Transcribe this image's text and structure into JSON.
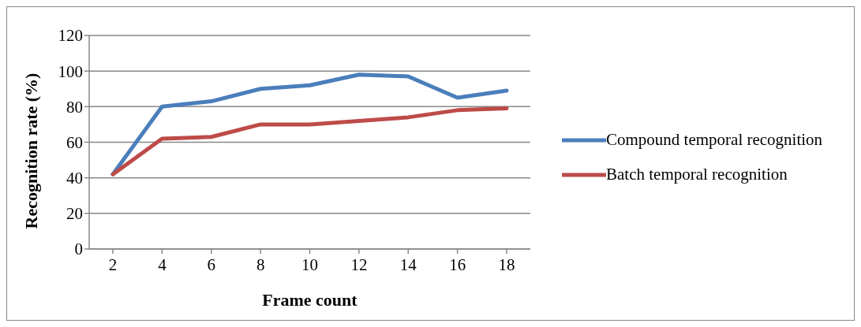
{
  "chart_data": {
    "type": "line",
    "xlabel": "Frame count",
    "ylabel": "Recognition rate (%)",
    "categories": [
      "2",
      "4",
      "6",
      "8",
      "10",
      "12",
      "14",
      "16",
      "18"
    ],
    "series": [
      {
        "name": "Compound temporal recognition",
        "color": "#4a7ebb",
        "values": [
          42,
          80,
          83,
          90,
          92,
          98,
          97,
          85,
          89
        ]
      },
      {
        "name": "Batch temporal recognition",
        "color": "#be4b48",
        "values": [
          42,
          62,
          63,
          70,
          70,
          72,
          74,
          78,
          79
        ]
      }
    ],
    "ylim": [
      0,
      120
    ],
    "yticks": [
      0,
      20,
      40,
      60,
      80,
      100,
      120
    ],
    "grid": "y",
    "legend": "right",
    "marker": "none",
    "line_style": "solid"
  }
}
